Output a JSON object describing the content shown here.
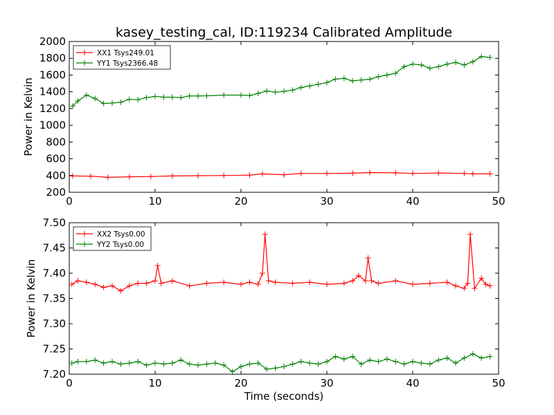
{
  "figure": {
    "title": "kasey_testing_cal, ID:119234 Calibrated Amplitude",
    "xlabel": "Time (seconds)"
  },
  "chart_data": [
    {
      "type": "line",
      "title": "kasey_testing_cal, ID:119234 Calibrated Amplitude",
      "xlabel": "",
      "ylabel": "Power in Kelvin",
      "xlim": [
        0,
        50
      ],
      "ylim": [
        200,
        2000
      ],
      "xticks": [
        0,
        10,
        20,
        30,
        40,
        50
      ],
      "yticks": [
        200,
        400,
        600,
        800,
        1000,
        1200,
        1400,
        1600,
        1800,
        2000
      ],
      "ytick_labels": [
        "200",
        "400",
        "600",
        "800",
        "1000",
        "1200",
        "1400",
        "1600",
        "1800",
        "2000"
      ],
      "grid": false,
      "legend": "top-left",
      "marker": "+",
      "series": [
        {
          "name": "XX1 Tsys249.01",
          "color": "#ff0000",
          "x": [
            0.4,
            2.5,
            4.5,
            7,
            9.5,
            12,
            15,
            18,
            21,
            22.5,
            25,
            27,
            30,
            33,
            35,
            38,
            40,
            43,
            46,
            47,
            49
          ],
          "values": [
            395,
            392,
            378,
            385,
            388,
            395,
            398,
            400,
            405,
            420,
            410,
            425,
            425,
            428,
            435,
            432,
            425,
            430,
            425,
            420,
            420
          ]
        },
        {
          "name": "YY1 Tsys2366.48",
          "color": "#007f00",
          "x": [
            0.4,
            1,
            2,
            3,
            4,
            5,
            6,
            7,
            8,
            9,
            10,
            11,
            12,
            13,
            14,
            15,
            16,
            18,
            20,
            21,
            22,
            23,
            24,
            25,
            26,
            27,
            28,
            29,
            30,
            31,
            32,
            33,
            34,
            35,
            36,
            37,
            38,
            39,
            40,
            41,
            42,
            43,
            44,
            45,
            46,
            47,
            48,
            49
          ],
          "values": [
            1230,
            1290,
            1360,
            1320,
            1260,
            1265,
            1275,
            1310,
            1305,
            1330,
            1345,
            1335,
            1335,
            1330,
            1350,
            1350,
            1352,
            1360,
            1360,
            1355,
            1380,
            1410,
            1395,
            1405,
            1420,
            1450,
            1470,
            1490,
            1510,
            1550,
            1560,
            1530,
            1540,
            1550,
            1580,
            1600,
            1620,
            1700,
            1730,
            1720,
            1680,
            1700,
            1730,
            1750,
            1720,
            1760,
            1820,
            1810
          ]
        }
      ]
    },
    {
      "type": "line",
      "title": "",
      "xlabel": "Time (seconds)",
      "ylabel": "Power in Kelvin",
      "xlim": [
        0,
        50
      ],
      "ylim": [
        7.2,
        7.5
      ],
      "xticks": [
        0,
        10,
        20,
        30,
        40,
        50
      ],
      "yticks": [
        7.2,
        7.25,
        7.3,
        7.35,
        7.4,
        7.45,
        7.5
      ],
      "ytick_labels": [
        "7.20",
        "7.25",
        "7.30",
        "7.35",
        "7.40",
        "7.45",
        "7.50"
      ],
      "grid": false,
      "legend": "top-left",
      "marker": "+",
      "series": [
        {
          "name": "XX2 Tsys0.00",
          "color": "#ff0000",
          "x": [
            0.3,
            1,
            2,
            3,
            4,
            5,
            6,
            7,
            8,
            9,
            10,
            10.3,
            10.7,
            12,
            14,
            16,
            18,
            20,
            21,
            22,
            22.5,
            22.8,
            23.2,
            24,
            26,
            28,
            30,
            32,
            33,
            33.7,
            34.5,
            34.8,
            35.2,
            36,
            38,
            40,
            42,
            44,
            45,
            46,
            46.4,
            46.7,
            47.2,
            48,
            48.5,
            49
          ],
          "values": [
            7.378,
            7.385,
            7.382,
            7.378,
            7.372,
            7.375,
            7.365,
            7.375,
            7.38,
            7.38,
            7.385,
            7.415,
            7.38,
            7.385,
            7.375,
            7.38,
            7.382,
            7.378,
            7.382,
            7.378,
            7.4,
            7.477,
            7.385,
            7.382,
            7.38,
            7.382,
            7.378,
            7.38,
            7.385,
            7.395,
            7.385,
            7.43,
            7.385,
            7.38,
            7.385,
            7.378,
            7.38,
            7.382,
            7.375,
            7.37,
            7.38,
            7.477,
            7.37,
            7.39,
            7.378,
            7.375
          ]
        },
        {
          "name": "YY2 Tsys0.00",
          "color": "#007f00",
          "x": [
            0.3,
            1,
            2,
            3,
            4,
            5,
            6,
            7,
            8,
            9,
            10,
            11,
            12,
            13,
            14,
            15,
            16,
            17,
            18,
            19,
            20,
            21,
            22,
            23,
            24,
            25,
            26,
            27,
            28,
            29,
            30,
            31,
            32,
            33,
            34,
            35,
            36,
            37,
            38,
            39,
            40,
            41,
            42,
            43,
            44,
            45,
            46,
            47,
            48,
            49
          ],
          "values": [
            7.222,
            7.225,
            7.225,
            7.228,
            7.222,
            7.225,
            7.22,
            7.222,
            7.225,
            7.218,
            7.222,
            7.22,
            7.222,
            7.228,
            7.22,
            7.218,
            7.22,
            7.222,
            7.218,
            7.205,
            7.215,
            7.22,
            7.222,
            7.21,
            7.212,
            7.215,
            7.22,
            7.225,
            7.222,
            7.22,
            7.225,
            7.235,
            7.23,
            7.235,
            7.22,
            7.228,
            7.225,
            7.23,
            7.225,
            7.22,
            7.225,
            7.222,
            7.22,
            7.228,
            7.232,
            7.222,
            7.232,
            7.24,
            7.232,
            7.235
          ]
        }
      ]
    }
  ]
}
